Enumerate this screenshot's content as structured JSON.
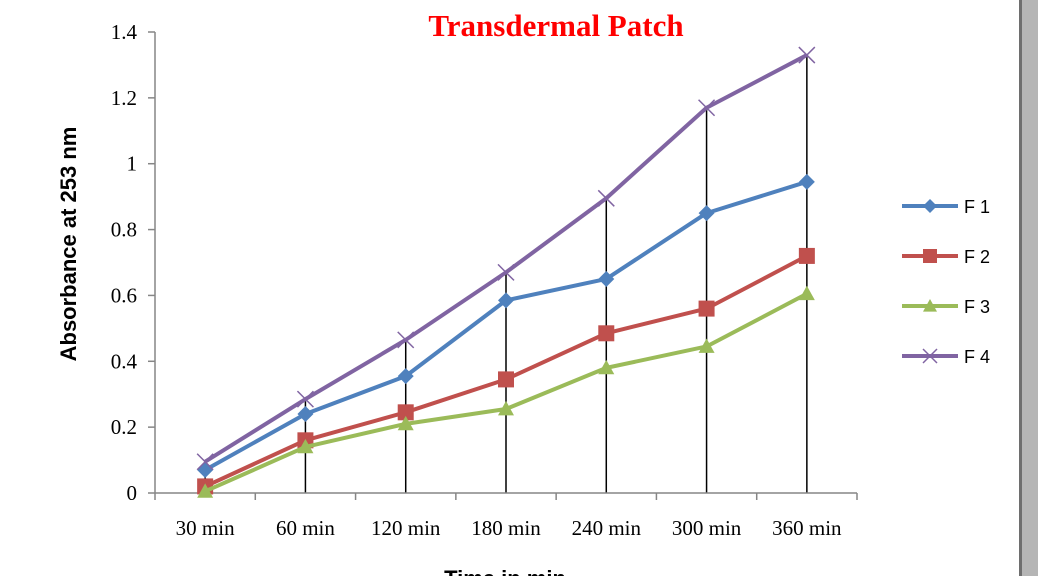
{
  "chart_data": {
    "type": "line",
    "title": "Transdermal Patch",
    "xlabel": "Time in min",
    "ylabel": "Absorbance at 253 nm",
    "categories": [
      "30 min",
      "60 min",
      "120 min",
      "180 min",
      "240 min",
      "300 min",
      "360 min"
    ],
    "yticks": [
      "0",
      "0.2",
      "0.4",
      "0.6",
      "0.8",
      "1",
      "1.2",
      "1.4"
    ],
    "ylim": [
      0,
      1.4
    ],
    "legend_position": "right",
    "series": [
      {
        "name": "F 1",
        "color": "#4f81bd",
        "marker": "diamond",
        "values": [
          0.07,
          0.24,
          0.355,
          0.585,
          0.65,
          0.85,
          0.945
        ]
      },
      {
        "name": "F 2",
        "color": "#c0504d",
        "marker": "square",
        "values": [
          0.02,
          0.16,
          0.245,
          0.345,
          0.485,
          0.56,
          0.72
        ]
      },
      {
        "name": "F 3",
        "color": "#9bbb59",
        "marker": "triangle",
        "values": [
          0.005,
          0.14,
          0.21,
          0.255,
          0.38,
          0.445,
          0.605
        ]
      },
      {
        "name": "F 4",
        "color": "#8064a2",
        "marker": "x",
        "values": [
          0.095,
          0.285,
          0.465,
          0.67,
          0.895,
          1.17,
          1.33
        ]
      }
    ]
  }
}
